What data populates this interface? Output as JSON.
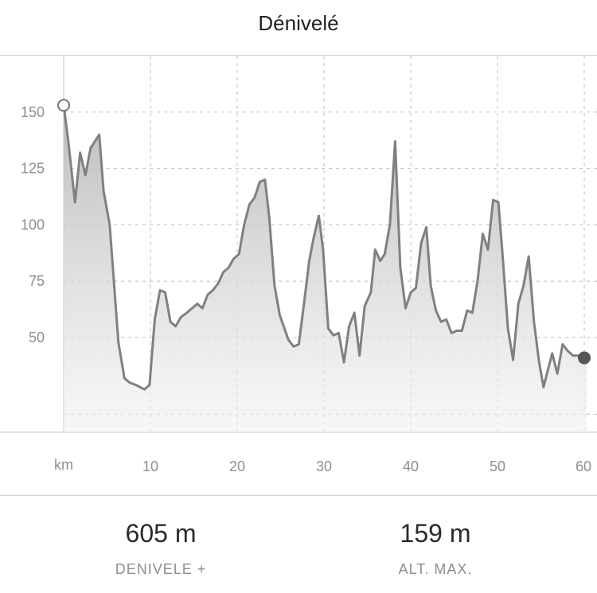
{
  "header": {
    "title": "Dénivelé"
  },
  "colors": {
    "line": "#808080",
    "grid": "#c8c8c8",
    "label": "#8e8e8e",
    "end_marker": "#555555"
  },
  "chart_data": {
    "type": "area",
    "xlabel": "km",
    "ylabel": "",
    "xlim": [
      0,
      60
    ],
    "ylim": [
      8,
      175
    ],
    "x_ticks": [
      10,
      20,
      30,
      40,
      50,
      60
    ],
    "y_ticks": [
      150,
      125,
      100,
      75,
      50
    ],
    "grid": true,
    "series": [
      {
        "x": [
          0,
          0.5,
          1.3,
          1.9,
          2.5,
          3.1,
          4.1,
          4.6,
          5.3,
          6.3,
          7.0,
          7.6,
          8.3,
          9.3,
          9.9,
          10.5,
          11.1,
          11.7,
          12.3,
          12.9,
          13.5,
          14.2,
          14.8,
          15.4,
          16.0,
          16.6,
          17.2,
          17.8,
          18.4,
          19.0,
          19.6,
          20.2,
          20.8,
          21.4,
          22.0,
          22.6,
          23.2,
          23.7,
          24.3,
          24.9,
          25.9,
          26.5,
          27.1,
          27.7,
          28.3,
          28.8,
          29.4,
          29.9,
          30.5,
          31.1,
          31.7,
          32.3,
          32.9,
          33.5,
          34.1,
          34.7,
          35.4,
          35.9,
          36.5,
          37.0,
          37.6,
          38.2,
          38.8,
          39.4,
          40.0,
          40.6,
          41.2,
          41.8,
          42.3,
          42.9,
          43.5,
          44.1,
          44.7,
          45.3,
          45.9,
          46.5,
          47.1,
          47.7,
          48.3,
          48.9,
          49.5,
          50.1,
          50.6,
          51.2,
          51.8,
          52.4,
          53.0,
          53.6,
          54.2,
          54.8,
          55.3,
          56.3,
          56.9,
          57.5,
          58.1,
          58.7,
          59.3,
          59.9,
          60.3
        ],
        "y": [
          153,
          138,
          110,
          132,
          122,
          134,
          140,
          115,
          100,
          48,
          32,
          30,
          29,
          27,
          29,
          58,
          71,
          70,
          57,
          55,
          59,
          61,
          63,
          65,
          63,
          69,
          71,
          74,
          79,
          81,
          85,
          87,
          100,
          109,
          112,
          119,
          120,
          103,
          73,
          60,
          49,
          46,
          47,
          65,
          84,
          94,
          104,
          89,
          54,
          51,
          52,
          39,
          55,
          61,
          42,
          64,
          70,
          89,
          84,
          87,
          100,
          137,
          81,
          63,
          70,
          72,
          92,
          99,
          73,
          62,
          57,
          58,
          52,
          53,
          53,
          62,
          61,
          75,
          96,
          89,
          111,
          110,
          86,
          54,
          40,
          65,
          73,
          86,
          57,
          39,
          28,
          43,
          34,
          47,
          44,
          42,
          42,
          42,
          41
        ]
      }
    ],
    "markers": [
      {
        "x": 0,
        "y": 153,
        "style": "open"
      },
      {
        "x": 60,
        "y": 41,
        "style": "filled"
      }
    ]
  },
  "stats": [
    {
      "value": "605 m",
      "label": "DENIVELE +"
    },
    {
      "value": "159 m",
      "label": "ALT. MAX."
    }
  ]
}
